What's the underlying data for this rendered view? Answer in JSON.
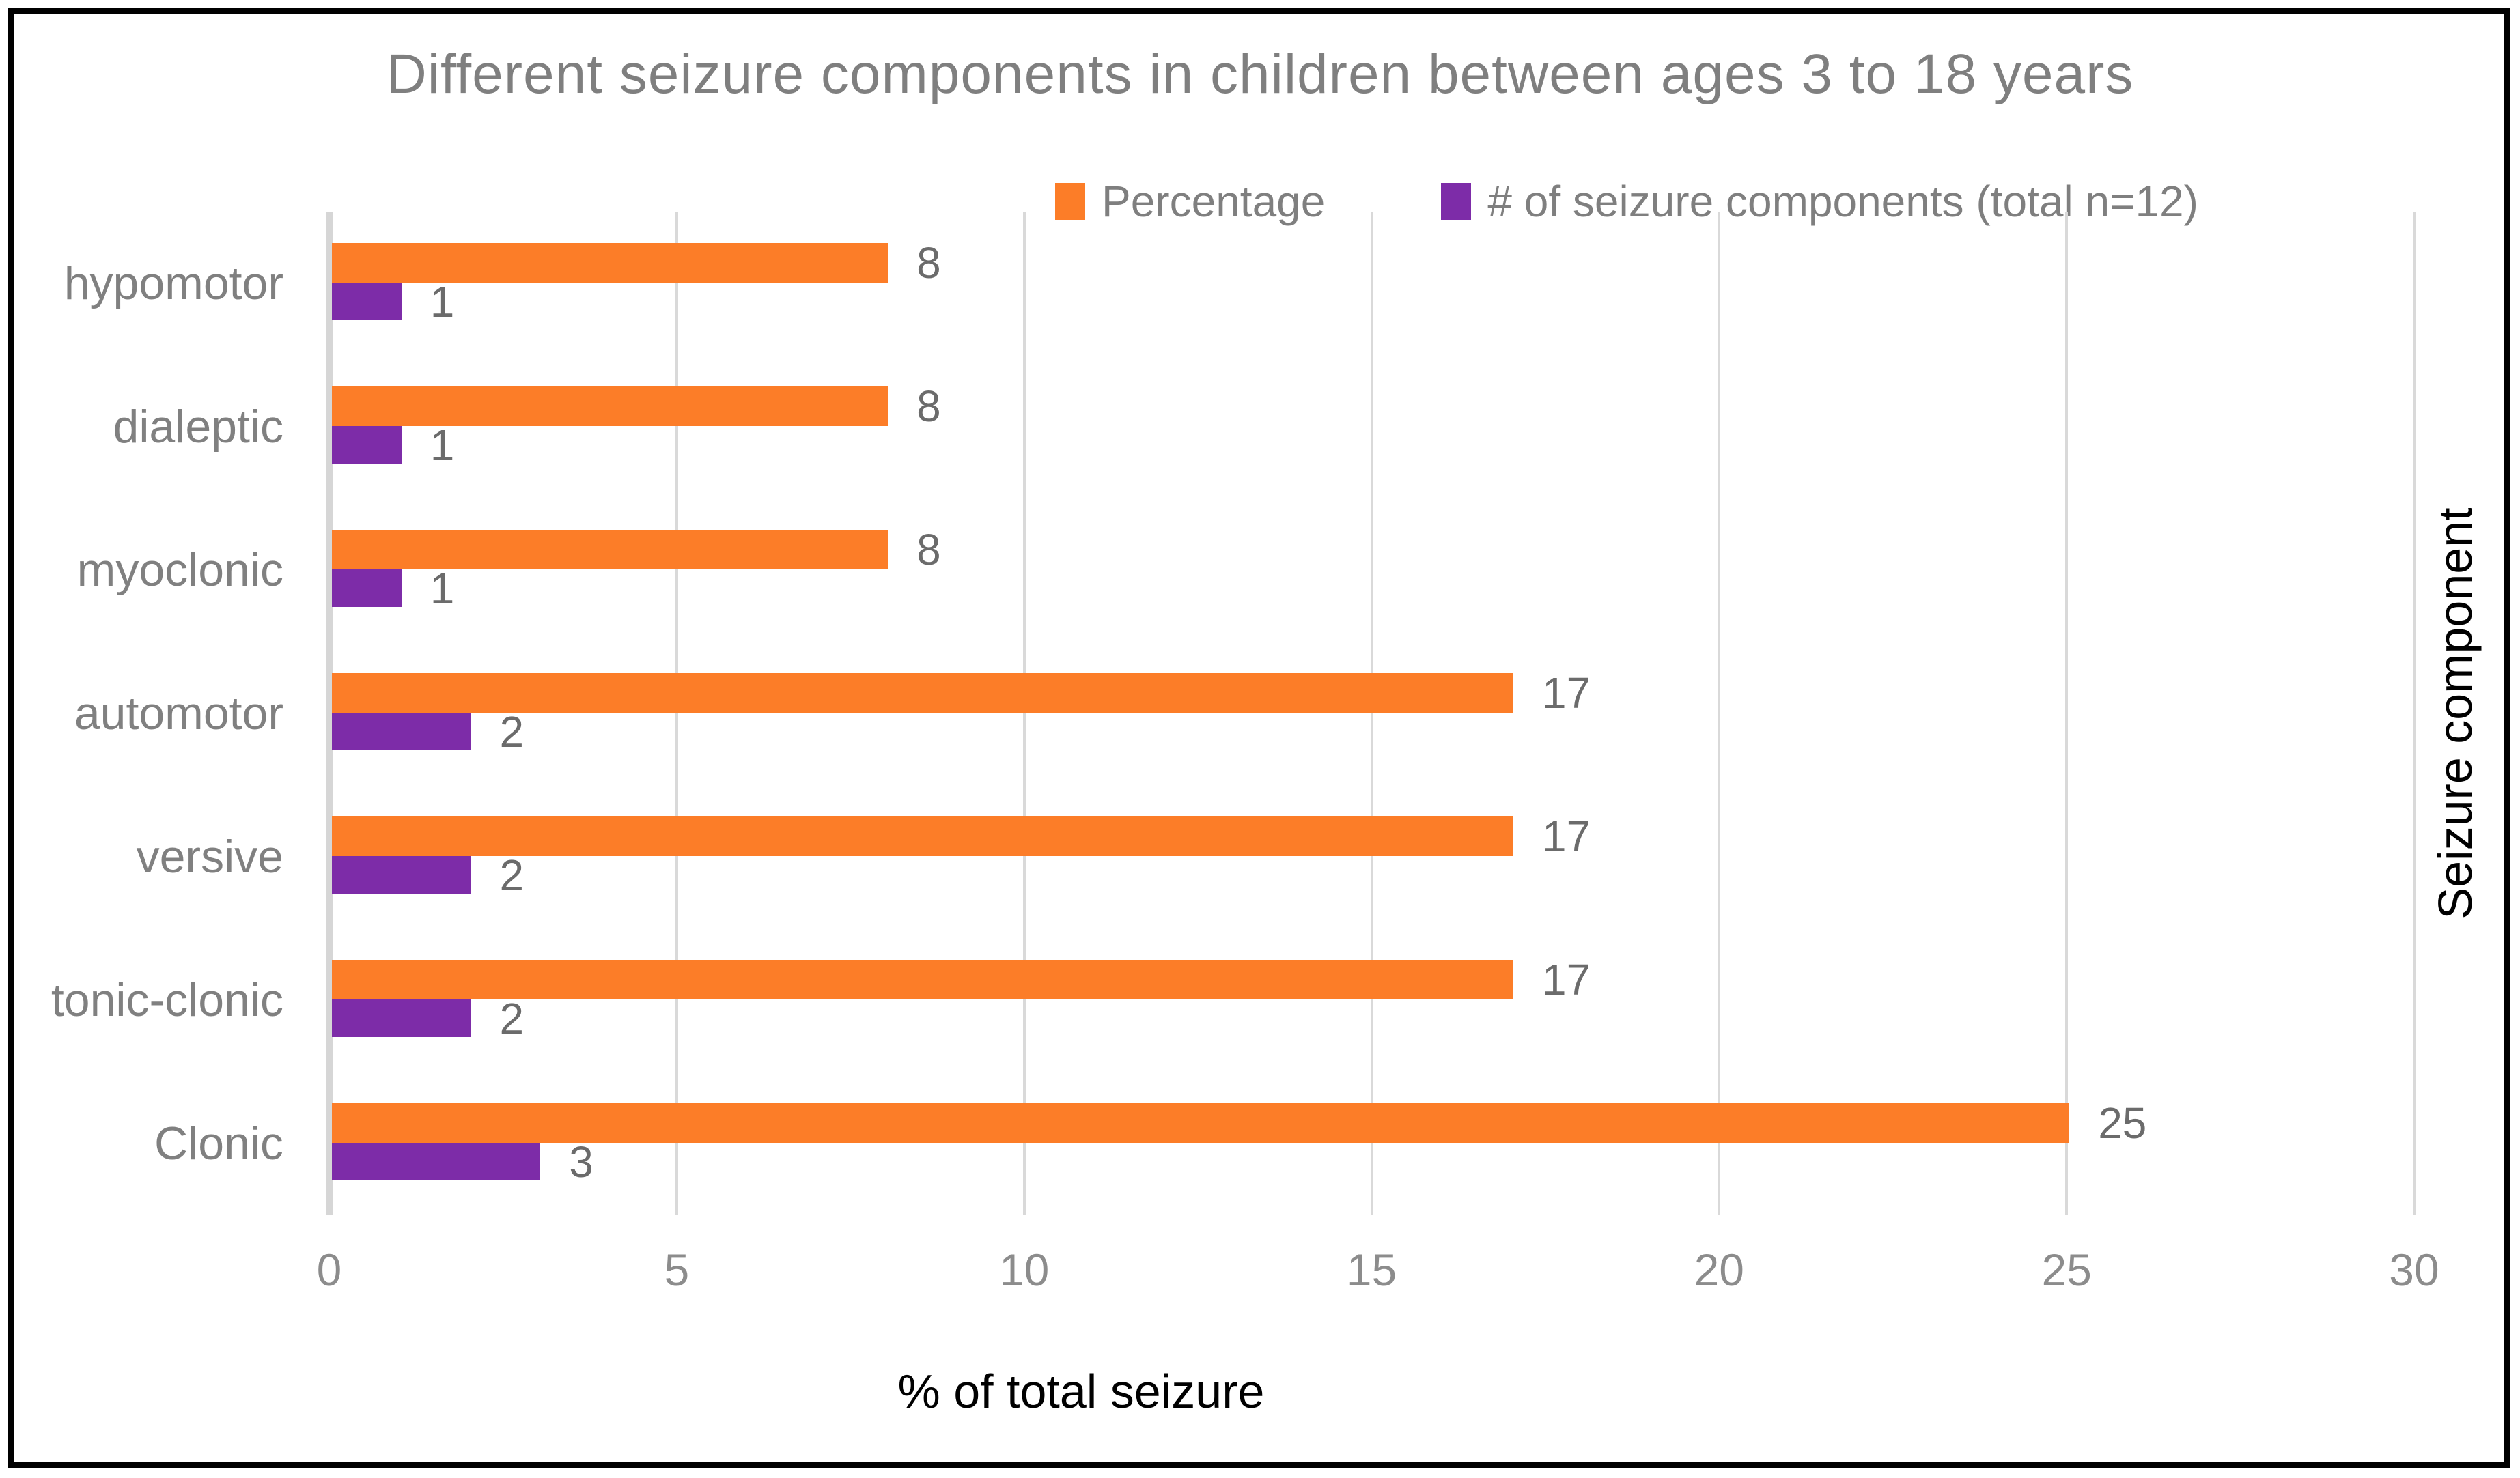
{
  "title": "Different seizure components in children between ages 3 to 18 years",
  "chart_data": {
    "type": "bar",
    "orientation": "horizontal",
    "title": "Different seizure components in children between ages 3 to 18 years",
    "categories": [
      "hypomotor",
      "dialeptic",
      "myoclonic",
      "automotor",
      "versive",
      "tonic-clonic",
      "Clonic"
    ],
    "series": [
      {
        "name": "Percentage",
        "color": "#FC7D28",
        "values": [
          8,
          8,
          8,
          17,
          17,
          17,
          25
        ]
      },
      {
        "name": "# of seizure components (total n=12)",
        "color": "#7D2CA8",
        "values": [
          1,
          1,
          1,
          2,
          2,
          2,
          3
        ]
      }
    ],
    "data_labels": {
      "percentage": [
        "8",
        "8",
        "8",
        "17",
        "17",
        "17",
        "25"
      ],
      "count": [
        "1",
        "1",
        "1",
        "2",
        "2",
        "2",
        "3"
      ]
    },
    "xlabel": "% of total seizure",
    "ylabel": "Seizure component",
    "xlim": [
      0,
      30
    ],
    "xticks": [
      "0",
      "5",
      "10",
      "15",
      "20",
      "25",
      "30"
    ],
    "grid": true,
    "legend_position": "top"
  },
  "colors": {
    "series_percentage": "#FC7D28",
    "series_count": "#7D2CA8",
    "gridline": "#D9D9D9",
    "axis_line": "#D6D6D6",
    "title_text": "#7F7F7F",
    "tick_text": "#8C8C8C",
    "category_text": "#808080",
    "data_label_text": "#6B6B6B",
    "axis_title_text": "#000000",
    "border": "#000000",
    "background": "#FFFFFF"
  }
}
